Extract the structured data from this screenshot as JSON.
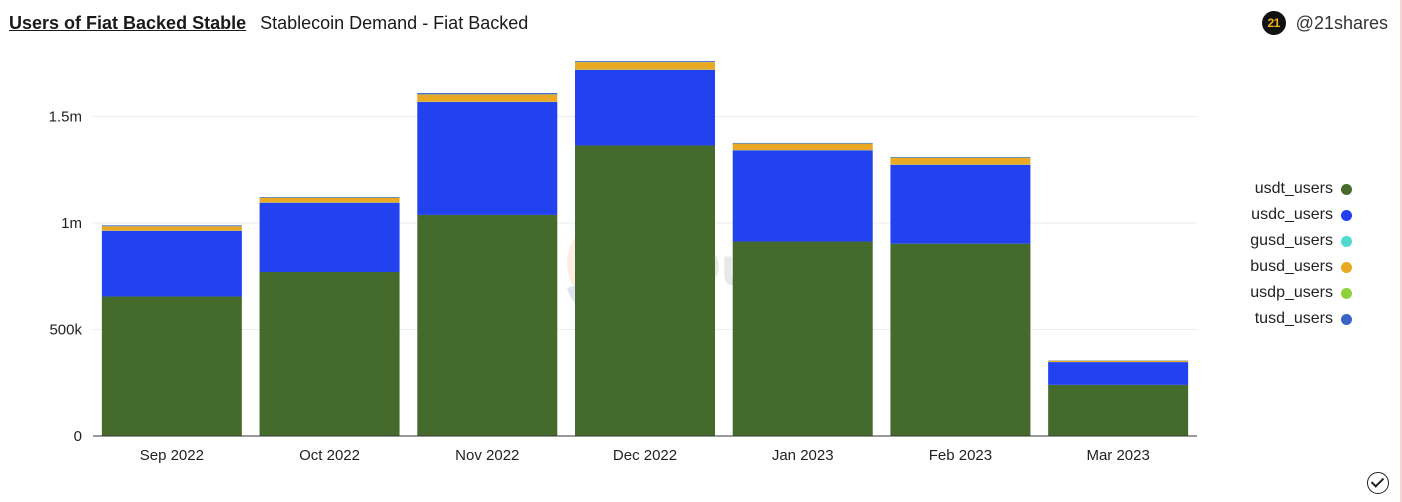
{
  "header": {
    "query_title": "Users of Fiat Backed Stable",
    "viz_title": "Stablecoin Demand - Fiat Backed"
  },
  "brand": {
    "logo_text": "21",
    "handle": "@21shares"
  },
  "watermark": "Dune",
  "chart_data": {
    "type": "bar",
    "stacked": true,
    "categories": [
      "Sep 2022",
      "Oct 2022",
      "Nov 2022",
      "Dec 2022",
      "Jan 2023",
      "Feb 2023",
      "Mar 2023"
    ],
    "y_ticks": [
      {
        "value": 0,
        "label": "0"
      },
      {
        "value": 500000,
        "label": "500k"
      },
      {
        "value": 1000000,
        "label": "1m"
      },
      {
        "value": 1500000,
        "label": "1.5m"
      }
    ],
    "ylim": [
      0,
      1800000
    ],
    "grid": true,
    "legend_position": "right",
    "series": [
      {
        "name": "usdt_users",
        "color": "#456b2c",
        "values": [
          655000,
          770000,
          1038000,
          1364000,
          913000,
          903000,
          240000
        ]
      },
      {
        "name": "usdc_users",
        "color": "#2242f0",
        "values": [
          308000,
          325000,
          530000,
          355000,
          428000,
          370000,
          107000
        ]
      },
      {
        "name": "gusd_users",
        "color": "#4fd9cf",
        "values": [
          1000,
          1000,
          1000,
          1000,
          1000,
          1000,
          500
        ]
      },
      {
        "name": "busd_users",
        "color": "#e9a924",
        "values": [
          20000,
          22000,
          34000,
          35000,
          30000,
          32000,
          6000
        ]
      },
      {
        "name": "usdp_users",
        "color": "#8fd13a",
        "values": [
          1000,
          1000,
          1000,
          1000,
          1000,
          1000,
          500
        ]
      },
      {
        "name": "tusd_users",
        "color": "#3a63c7",
        "values": [
          4000,
          3000,
          6000,
          4000,
          3000,
          3000,
          1000
        ]
      }
    ]
  }
}
